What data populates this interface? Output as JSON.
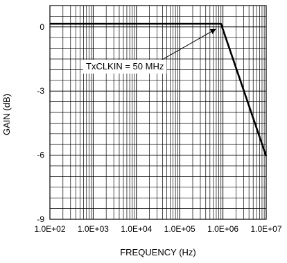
{
  "chart_data": {
    "type": "line",
    "title": "",
    "xlabel": "FREQUENCY (Hz)",
    "ylabel": "GAIN (dB)",
    "x_scale": "log",
    "xlim": [
      100,
      10000000
    ],
    "ylim": [
      -9,
      1
    ],
    "grid": true,
    "x_ticks": [
      {
        "value": 100,
        "label": "1.0E+02"
      },
      {
        "value": 1000,
        "label": "1.0E+03"
      },
      {
        "value": 10000,
        "label": "1.0E+04"
      },
      {
        "value": 100000,
        "label": "1.0E+05"
      },
      {
        "value": 1000000,
        "label": "1.0E+06"
      },
      {
        "value": 10000000,
        "label": "1.0E+07"
      }
    ],
    "y_ticks": [
      {
        "value": 0,
        "label": "0"
      },
      {
        "value": -3,
        "label": "-3"
      },
      {
        "value": -6,
        "label": "-6"
      },
      {
        "value": -9,
        "label": "-9"
      }
    ],
    "series": [
      {
        "x": [
          100,
          900000,
          10000000
        ],
        "y": [
          0.15,
          0.15,
          -6.05
        ],
        "color": "#000000"
      }
    ],
    "annotations": [
      {
        "text": "TxCLKIN =  50 MHz",
        "arrow_to": {
          "x": 900000,
          "y": 0.15
        }
      }
    ]
  }
}
